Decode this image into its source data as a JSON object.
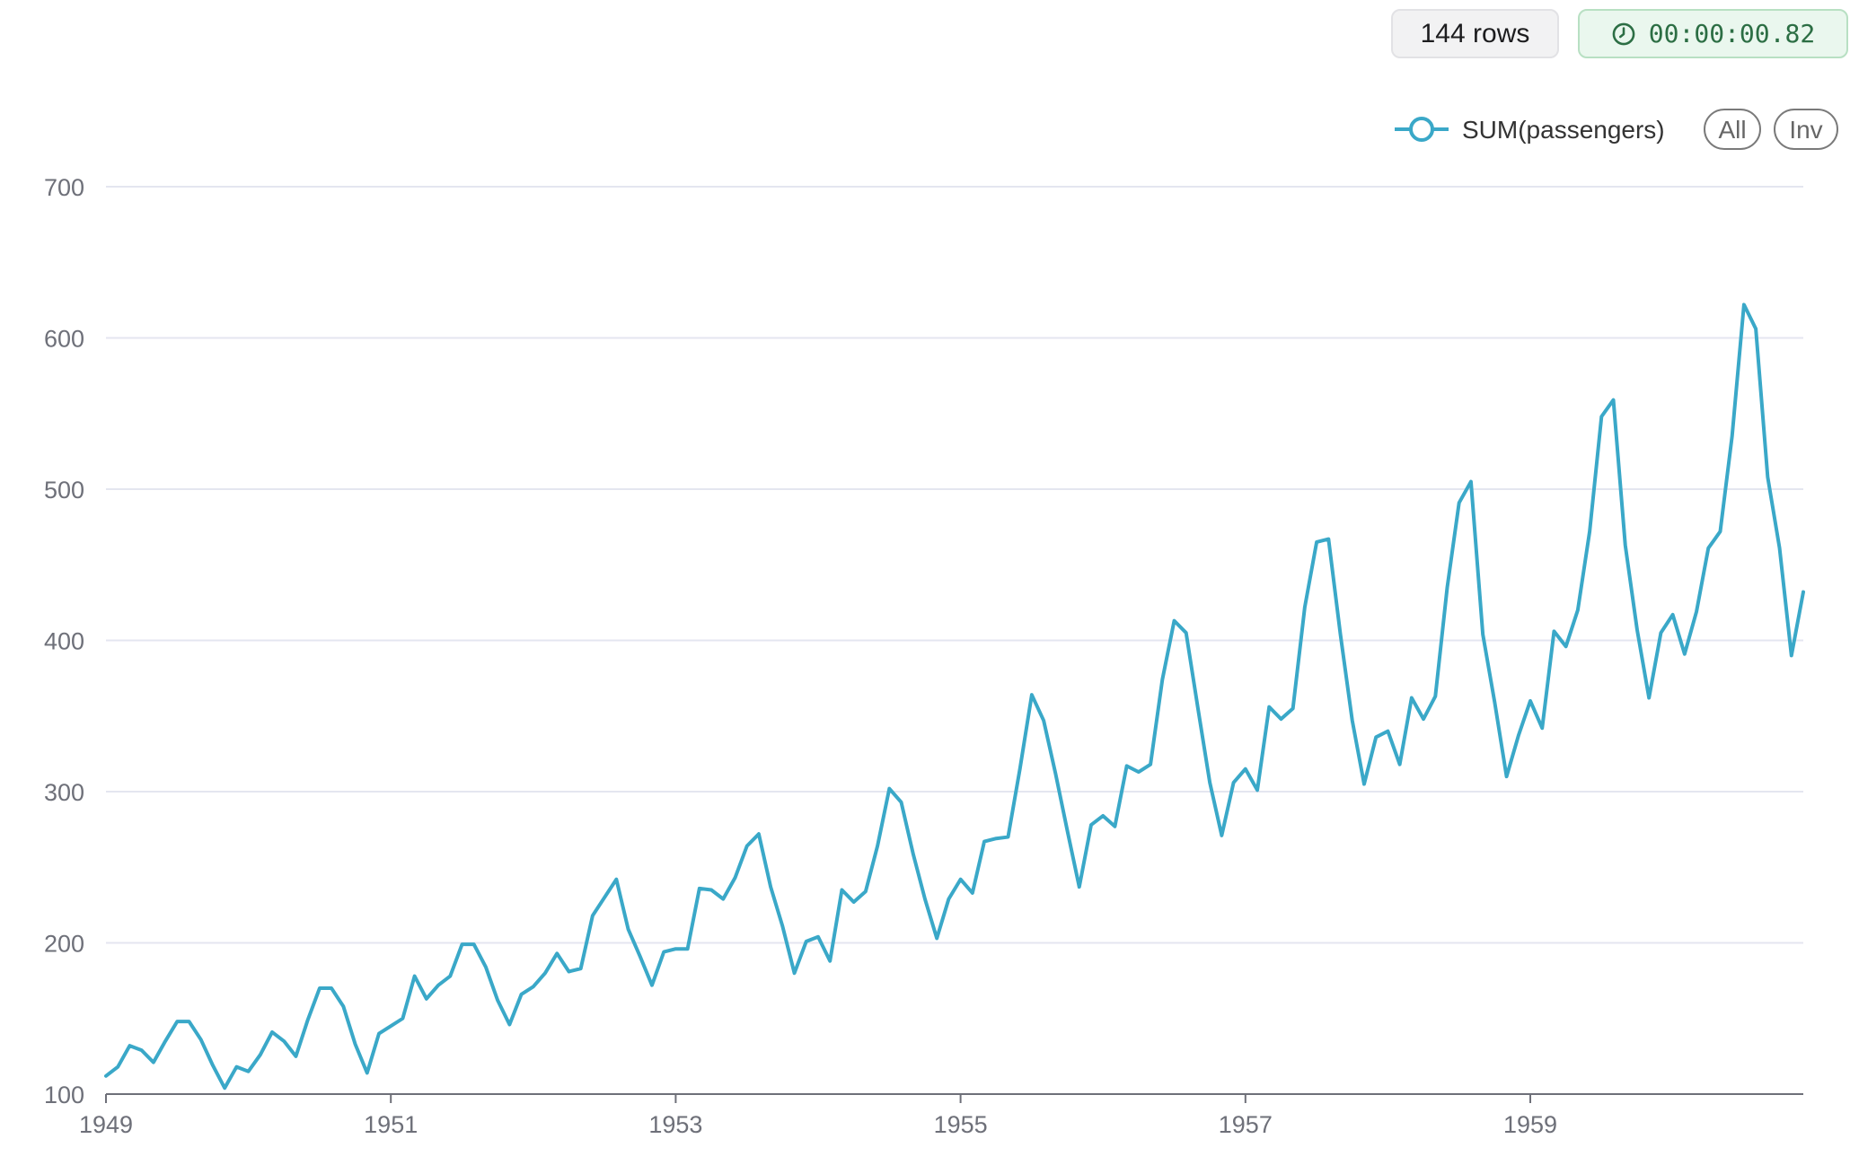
{
  "header": {
    "rows_label": "144 rows",
    "time_label": "00:00:00.82"
  },
  "legend": {
    "series_label": "SUM(passengers)",
    "all_label": "All",
    "inv_label": "Inv",
    "position": "top-right"
  },
  "icons": {
    "timer": "clock-icon",
    "legend_marker": "circle-line-marker"
  },
  "colors": {
    "series": "#3aa8c8",
    "grid": "#e4e6f0",
    "axis": "#6e7079",
    "rows_badge_bg": "#f2f2f3",
    "time_badge_bg": "#eaf7ee",
    "time_text": "#2c6e44"
  },
  "chart_data": {
    "type": "line",
    "title": "",
    "xlabel": "",
    "ylabel": "",
    "ylim": [
      100,
      700
    ],
    "y_ticks": [
      100,
      200,
      300,
      400,
      500,
      600,
      700
    ],
    "x_ticks": [
      "1949",
      "1951",
      "1953",
      "1955",
      "1957",
      "1959"
    ],
    "x_start": "1949-01",
    "x_end": "1960-12",
    "grid": true,
    "series": [
      {
        "name": "SUM(passengers)",
        "values": [
          112,
          118,
          132,
          129,
          121,
          135,
          148,
          148,
          136,
          119,
          104,
          118,
          115,
          126,
          141,
          135,
          125,
          149,
          170,
          170,
          158,
          133,
          114,
          140,
          145,
          150,
          178,
          163,
          172,
          178,
          199,
          199,
          184,
          162,
          146,
          166,
          171,
          180,
          193,
          181,
          183,
          218,
          230,
          242,
          209,
          191,
          172,
          194,
          196,
          196,
          236,
          235,
          229,
          243,
          264,
          272,
          237,
          211,
          180,
          201,
          204,
          188,
          235,
          227,
          234,
          264,
          302,
          293,
          259,
          229,
          203,
          229,
          242,
          233,
          267,
          269,
          270,
          315,
          364,
          347,
          312,
          274,
          237,
          278,
          284,
          277,
          317,
          313,
          318,
          374,
          413,
          405,
          355,
          306,
          271,
          306,
          315,
          301,
          356,
          348,
          355,
          422,
          465,
          467,
          404,
          347,
          305,
          336,
          340,
          318,
          362,
          348,
          363,
          435,
          491,
          505,
          404,
          359,
          310,
          337,
          360,
          342,
          406,
          396,
          420,
          472,
          548,
          559,
          463,
          407,
          362,
          405,
          417,
          391,
          419,
          461,
          472,
          535,
          622,
          606,
          508,
          461,
          390,
          432
        ]
      }
    ]
  }
}
